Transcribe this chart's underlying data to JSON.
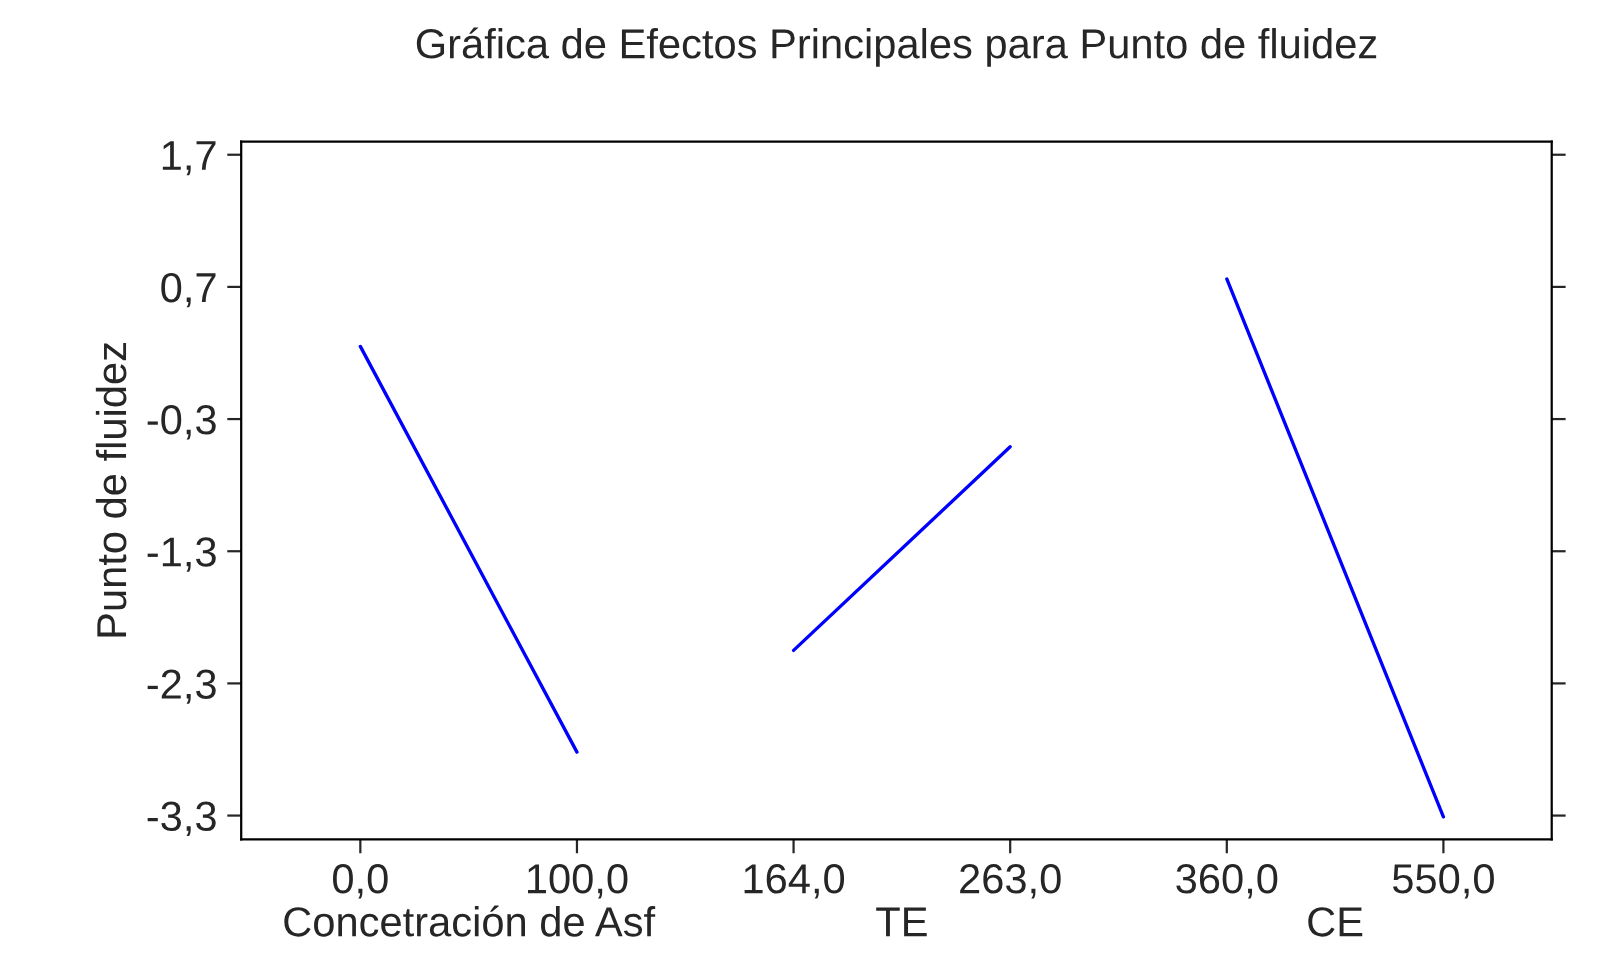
{
  "chart_data": {
    "type": "line",
    "title": "Gráfica de Efectos Principales para Punto de fluidez",
    "ylabel": "Punto de fluidez",
    "categories": [
      "0,0",
      "100,0",
      "164,0",
      "263,0",
      "360,0",
      "550,0"
    ],
    "series": [
      {
        "color": "#0000ff",
        "values": [
          0.25,
          -2.82,
          null,
          null,
          null,
          null
        ]
      },
      {
        "color": "#0000ff",
        "values": [
          null,
          null,
          -2.05,
          -0.51,
          null,
          null
        ]
      },
      {
        "color": "#0000ff",
        "values": [
          null,
          null,
          null,
          null,
          0.76,
          -3.31
        ]
      }
    ],
    "annotations": [
      "Concetración de Asf",
      "TE",
      "CE"
    ],
    "ylim": [
      -3.48,
      1.8
    ],
    "yticks": [
      {
        "value": 1.7,
        "label": "1,7"
      },
      {
        "value": 0.7,
        "label": "0,7"
      },
      {
        "value": -0.3,
        "label": "-0,3"
      },
      {
        "value": -1.3,
        "label": "-1,3"
      },
      {
        "value": -2.3,
        "label": "-2,3"
      },
      {
        "value": -3.3,
        "label": "-3,3"
      }
    ]
  }
}
